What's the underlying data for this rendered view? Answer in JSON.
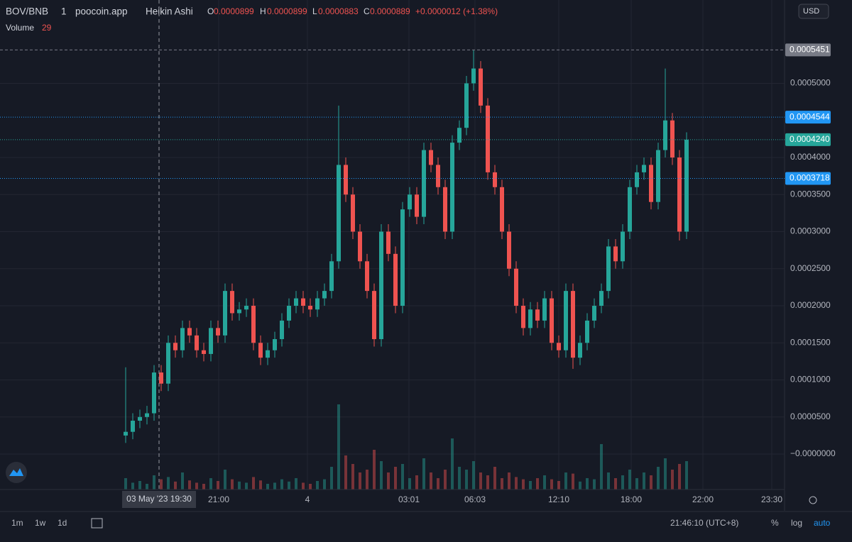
{
  "chart_data": {
    "type": "candlestick",
    "header": {
      "symbol": "BOV/BNB",
      "interval": "1",
      "source": "poocoin.app",
      "style": "Heikin Ashi",
      "o_label": "O",
      "o": "0.0000899",
      "h_label": "H",
      "h": "0.0000899",
      "l_label": "L",
      "l": "0.0000883",
      "c_label": "C",
      "c": "0.0000889",
      "change": "+0.0000012 (+1.38%)",
      "volume_label": "Volume",
      "volume": "29"
    },
    "currency": "USD",
    "up_color": "#26a69a",
    "down_color": "#ef5350",
    "candles": {
      "open": [
        2.5e-05,
        3e-05,
        4.5e-05,
        5e-05,
        5.5e-05,
        0.00011,
        9.5e-05,
        0.00015,
        0.00014,
        0.00017,
        0.00016,
        0.00014,
        0.000135,
        0.00017,
        0.00016,
        0.00022,
        0.00019,
        0.000195,
        0.0002,
        0.00015,
        0.00013,
        0.00014,
        0.000155,
        0.00018,
        0.0002,
        0.00021,
        0.0002,
        0.000195,
        0.00021,
        0.00022,
        0.00026,
        0.00039,
        0.00035,
        0.0003,
        0.00026,
        0.00022,
        0.000155,
        0.0003,
        0.00027,
        0.0002,
        0.00033,
        0.00035,
        0.00032,
        0.00041,
        0.00039,
        0.00036,
        0.0003,
        0.00042,
        0.00044,
        0.0005,
        0.00052,
        0.00047,
        0.00038,
        0.00036,
        0.0003,
        0.00025,
        0.0002,
        0.00017,
        0.000195,
        0.00018,
        0.00021,
        0.00015,
        0.00014,
        0.00022,
        0.00013,
        0.00015,
        0.00018,
        0.0002,
        0.00022,
        0.00028,
        0.00026,
        0.0003,
        0.00036,
        0.00038,
        0.00039,
        0.00034,
        0.00041,
        0.00045,
        0.0004,
        0.0003
      ],
      "high": [
        0.000117,
        5.5e-05,
        6e-05,
        6.5e-05,
        0.00012,
        0.00012,
        0.00016,
        0.00016,
        0.00018,
        0.00018,
        0.00017,
        0.00015,
        0.00018,
        0.00018,
        0.00023,
        0.00023,
        0.000205,
        0.00021,
        0.00021,
        0.00016,
        0.00015,
        0.000165,
        0.00019,
        0.00021,
        0.00022,
        0.00022,
        0.00021,
        0.00022,
        0.00023,
        0.00027,
        0.00047,
        0.0004,
        0.00036,
        0.00031,
        0.00027,
        0.00023,
        0.00031,
        0.00031,
        0.00028,
        0.00034,
        0.00036,
        0.00036,
        0.00042,
        0.00042,
        0.0004,
        0.00037,
        0.00043,
        0.00045,
        0.00051,
        0.0005451,
        0.00053,
        0.00048,
        0.00039,
        0.00037,
        0.00031,
        0.00026,
        0.00021,
        0.000205,
        0.000205,
        0.00022,
        0.00022,
        0.00016,
        0.00023,
        0.00023,
        0.00016,
        0.00019,
        0.00021,
        0.00023,
        0.00029,
        0.00029,
        0.00031,
        0.00037,
        0.00039,
        0.0004,
        0.0004,
        0.00042,
        0.00052,
        0.00046,
        0.00041,
        0.000434
      ],
      "low": [
        1.5e-05,
        2e-05,
        3.5e-05,
        4e-05,
        4.5e-05,
        8.5e-05,
        8.5e-05,
        0.00013,
        0.00013,
        0.00015,
        0.00013,
        0.000125,
        0.000125,
        0.00015,
        0.00015,
        0.00018,
        0.00018,
        0.000185,
        0.00014,
        0.00012,
        0.00012,
        0.00013,
        0.000145,
        0.00017,
        0.00019,
        0.00019,
        0.000185,
        0.000185,
        0.0002,
        0.00021,
        0.00025,
        0.00034,
        0.00029,
        0.00025,
        0.00021,
        0.000145,
        0.000145,
        0.00026,
        0.00019,
        0.00019,
        0.00032,
        0.00031,
        0.00031,
        0.00038,
        0.00035,
        0.00029,
        0.00029,
        0.00041,
        0.00043,
        0.00049,
        0.00046,
        0.00037,
        0.00035,
        0.00029,
        0.00024,
        0.00019,
        0.00016,
        0.00016,
        0.00017,
        0.00017,
        0.00014,
        0.00013,
        0.00013,
        0.000115,
        0.00012,
        0.00014,
        0.00017,
        0.00019,
        0.00021,
        0.00025,
        0.00025,
        0.00029,
        0.00035,
        0.00037,
        0.00033,
        0.00033,
        0.0004,
        0.00039,
        0.000288,
        0.00029
      ],
      "close": [
        3e-05,
        4.5e-05,
        5e-05,
        5.5e-05,
        0.00011,
        9.5e-05,
        0.00015,
        0.00014,
        0.00017,
        0.00016,
        0.00014,
        0.000135,
        0.00017,
        0.00016,
        0.00022,
        0.00019,
        0.000195,
        0.0002,
        0.00015,
        0.00013,
        0.00014,
        0.000155,
        0.00018,
        0.0002,
        0.00021,
        0.0002,
        0.000195,
        0.00021,
        0.00022,
        0.00026,
        0.00039,
        0.00035,
        0.0003,
        0.00026,
        0.00022,
        0.000155,
        0.0003,
        0.00027,
        0.0002,
        0.00033,
        0.00035,
        0.00032,
        0.00041,
        0.00039,
        0.00036,
        0.0003,
        0.00042,
        0.00044,
        0.0005,
        0.00052,
        0.00047,
        0.00038,
        0.00036,
        0.0003,
        0.00025,
        0.0002,
        0.00017,
        0.000195,
        0.00018,
        0.00021,
        0.00015,
        0.00014,
        0.00022,
        0.00013,
        0.00015,
        0.00018,
        0.0002,
        0.00022,
        0.00028,
        0.00026,
        0.0003,
        0.00036,
        0.00038,
        0.00039,
        0.00034,
        0.00041,
        0.00045,
        0.0004,
        0.0003,
        0.000424
      ]
    },
    "volume": [
      20,
      12,
      15,
      10,
      25,
      18,
      22,
      14,
      30,
      16,
      12,
      10,
      20,
      15,
      35,
      18,
      14,
      12,
      22,
      16,
      10,
      12,
      18,
      14,
      20,
      12,
      10,
      15,
      18,
      40,
      150,
      60,
      45,
      30,
      35,
      70,
      50,
      30,
      40,
      45,
      20,
      25,
      55,
      30,
      20,
      35,
      90,
      40,
      35,
      50,
      30,
      25,
      40,
      20,
      30,
      22,
      18,
      15,
      20,
      25,
      18,
      15,
      30,
      28,
      14,
      20,
      18,
      80,
      30,
      20,
      25,
      35,
      20,
      30,
      25,
      40,
      55,
      35,
      45,
      50
    ],
    "volume_ylim": [
      0,
      200
    ],
    "xlim": [
      -17.7,
      92.8
    ],
    "xticks": [
      {
        "value": 13.1,
        "label": "21:00"
      },
      {
        "value": 25.6,
        "label": "4"
      },
      {
        "value": 39.9,
        "label": "03:01"
      },
      {
        "value": 49.2,
        "label": "06:03"
      },
      {
        "value": 61,
        "label": "12:10"
      },
      {
        "value": 71.2,
        "label": "18:00"
      },
      {
        "value": 81.3,
        "label": "22:00"
      },
      {
        "value": 91,
        "label": "23:30"
      }
    ],
    "ylim": [
      -4.78e-05,
      0.0006124
    ],
    "yticks": [
      {
        "value": 0,
        "label": "−0.0000000"
      },
      {
        "value": 5e-05,
        "label": "0.0000500"
      },
      {
        "value": 0.0001,
        "label": "0.0001000"
      },
      {
        "value": 0.00015,
        "label": "0.0001500"
      },
      {
        "value": 0.0002,
        "label": "0.0002000"
      },
      {
        "value": 0.00025,
        "label": "0.0002500"
      },
      {
        "value": 0.0003,
        "label": "0.0003000"
      },
      {
        "value": 0.00035,
        "label": "0.0003500"
      },
      {
        "value": 0.0004,
        "label": "0.0004000"
      },
      {
        "value": 0.0005,
        "label": "0.0005000"
      }
    ],
    "price_lines": [
      {
        "value": 0.0005451,
        "label": "0.0005451",
        "color": "#787b86"
      },
      {
        "value": 0.0004544,
        "label": "0.0004544",
        "color": "#2196f3"
      },
      {
        "value": 0.000424,
        "label": "0.0004240",
        "color": "#26a69a"
      },
      {
        "value": 0.0003718,
        "label": "0.0003718",
        "color": "#2196f3"
      }
    ],
    "crosshair": {
      "x": 4.7,
      "label": "03 May '23   19:30"
    },
    "toolbar": {
      "ranges": [
        "1m",
        "1w",
        "1d"
      ],
      "clock": "21:46:10 (UTC+8)",
      "percent": "%",
      "log": "log",
      "auto": "auto"
    },
    "grid": true
  }
}
